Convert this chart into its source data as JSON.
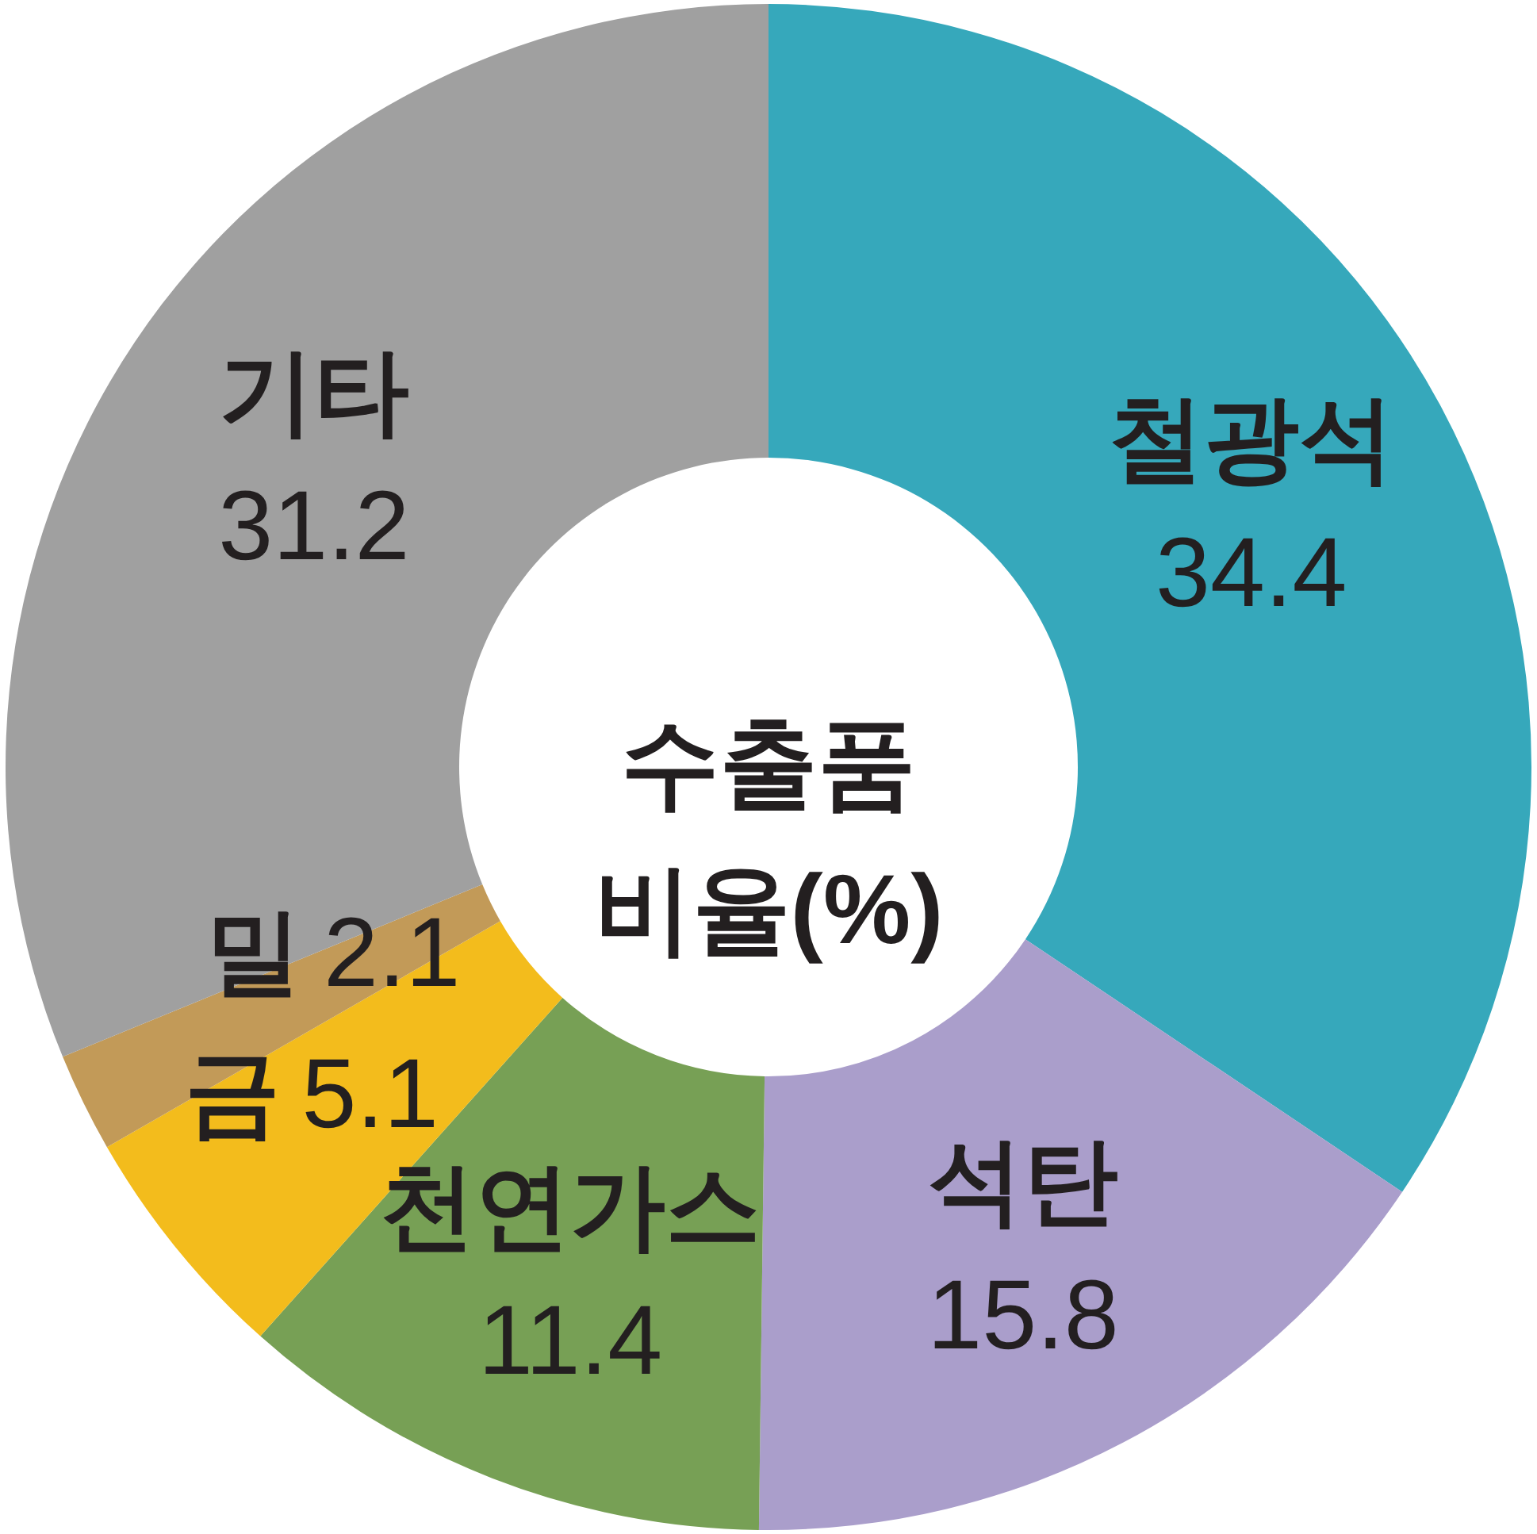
{
  "chart_data": {
    "type": "donut",
    "title": "수출품 비율(%)",
    "categories": [
      "철광석",
      "석탄",
      "천연가스",
      "금",
      "밀",
      "기타"
    ],
    "values": [
      34.4,
      15.8,
      11.4,
      5.1,
      2.1,
      31.2
    ],
    "colors": [
      "#36a8bb",
      "#aa9ecb",
      "#77a055",
      "#f3bc1c",
      "#c29a58",
      "#a0a0a0"
    ],
    "data_labels": true
  }
}
